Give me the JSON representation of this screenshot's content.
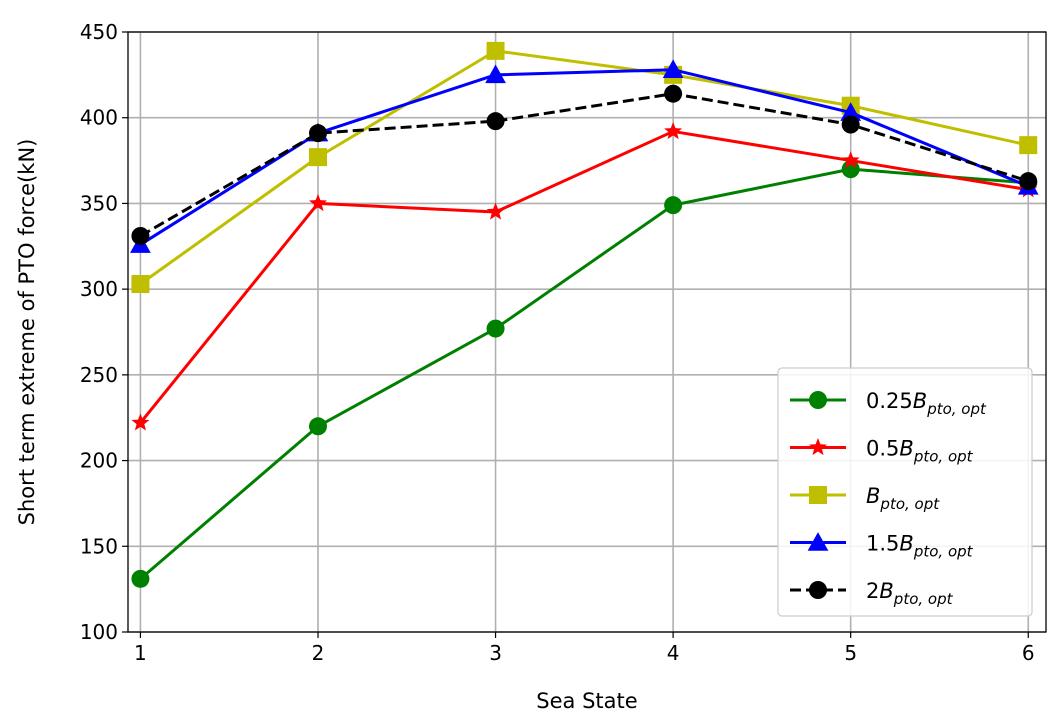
{
  "chart_data": {
    "type": "line",
    "xlabel": "Sea State",
    "ylabel": "Short term extreme of PTO force(kN)",
    "x": [
      1,
      2,
      3,
      4,
      5,
      6
    ],
    "xlim": [
      0.93,
      6.1
    ],
    "ylim": [
      100,
      450
    ],
    "xticks": [
      "1",
      "2",
      "3",
      "4",
      "5",
      "6"
    ],
    "yticks": [
      "100",
      "150",
      "200",
      "250",
      "300",
      "350",
      "400",
      "450"
    ],
    "grid": true,
    "legend_position": "lower-right",
    "series": [
      {
        "name": "0.25B",
        "sub": "pto, opt",
        "values": [
          131,
          220,
          277,
          349,
          370,
          362
        ],
        "color": "#008000",
        "marker": "circle",
        "dash": false
      },
      {
        "name": "0.5B",
        "sub": "pto, opt",
        "values": [
          222,
          350,
          345,
          392,
          375,
          358
        ],
        "color": "#ff0000",
        "marker": "star",
        "dash": false
      },
      {
        "name": "B",
        "sub": "pto, opt",
        "values": [
          303,
          377,
          439,
          425,
          407,
          384
        ],
        "color": "#bfbf00",
        "marker": "square",
        "dash": false
      },
      {
        "name": "1.5B",
        "sub": "pto, opt",
        "values": [
          326,
          391,
          425,
          428,
          403,
          360
        ],
        "color": "#0000ff",
        "marker": "triangle",
        "dash": false
      },
      {
        "name": "2B",
        "sub": "pto, opt",
        "values": [
          331,
          391,
          398,
          414,
          396,
          363
        ],
        "color": "#000000",
        "marker": "circle",
        "dash": true
      }
    ]
  }
}
